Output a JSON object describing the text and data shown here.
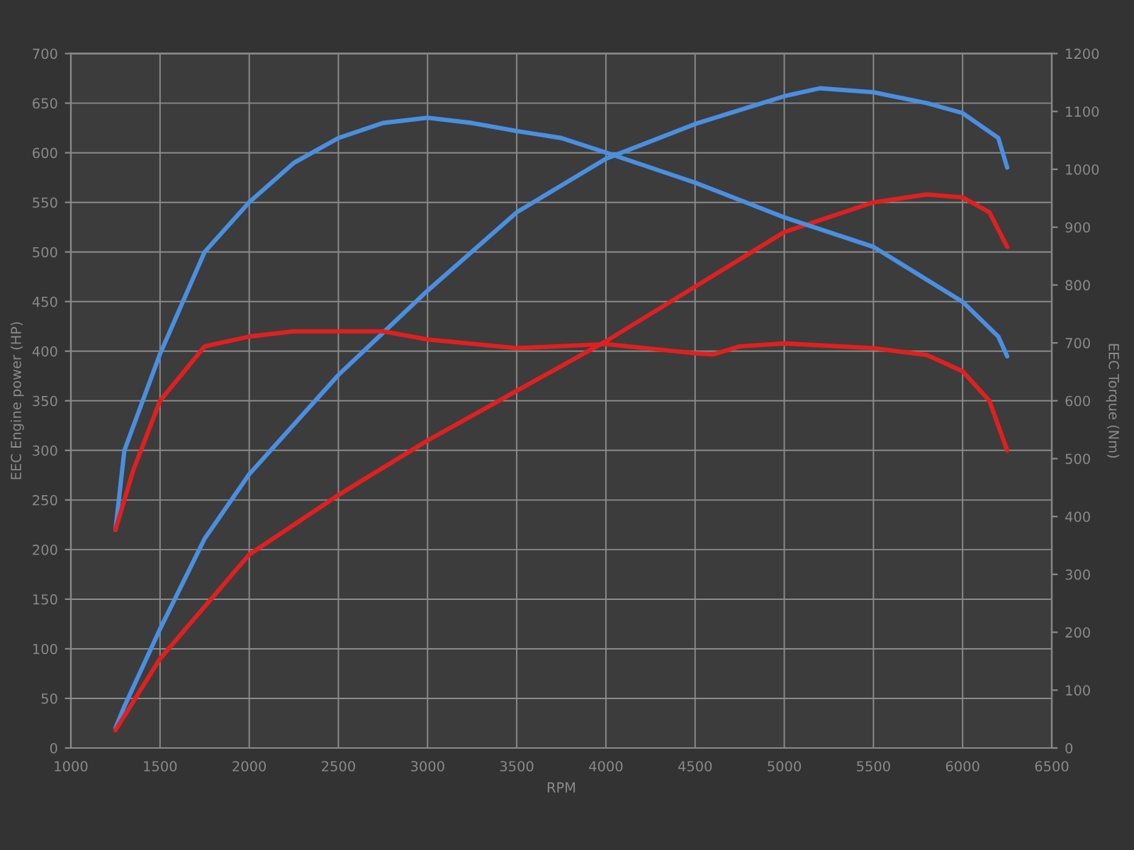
{
  "chart_data": {
    "type": "line",
    "xlabel": "RPM",
    "ylabel": "EEC Engine power (HP)",
    "y2label": "EEC Torque (Nm)",
    "xlim": [
      1000,
      6500
    ],
    "xticks": [
      1000,
      1500,
      2000,
      2500,
      3000,
      3500,
      4000,
      4500,
      5000,
      5500,
      6000,
      6500
    ],
    "ylim": [
      0,
      700
    ],
    "yticks": [
      0,
      50,
      100,
      150,
      200,
      250,
      300,
      350,
      400,
      450,
      500,
      550,
      600,
      650,
      700
    ],
    "y2lim": [
      0,
      1200
    ],
    "y2ticks": [
      0,
      100,
      200,
      300,
      400,
      500,
      600,
      700,
      800,
      900,
      1000,
      1100,
      1200
    ],
    "grid": true,
    "line_style": "solid",
    "series": [
      {
        "color": "#4a8fe0",
        "x": [
          1250,
          1300,
          1500,
          1750,
          2000,
          2500,
          3000,
          3500,
          4000,
          4500,
          5000,
          5200,
          5500,
          5800,
          6000,
          6200,
          6250
        ],
        "values": [
          20,
          42,
          120,
          211,
          276,
          376,
          461,
          540,
          594,
          629,
          657,
          665,
          661,
          650,
          640,
          615,
          585
        ]
      },
      {
        "color": "#e02020",
        "x": [
          1250,
          1500,
          2000,
          2500,
          3000,
          3500,
          4000,
          4500,
          5000,
          5500,
          5800,
          6000,
          6150,
          6250
        ],
        "values": [
          18,
          90,
          195,
          255,
          310,
          360,
          410,
          465,
          520,
          550,
          558,
          555,
          540,
          505
        ]
      },
      {
        "color": "#4a8fe0",
        "axis": "y2",
        "x": [
          1250,
          1300,
          1500,
          1750,
          2000,
          2250,
          2500,
          2750,
          3000,
          3250,
          3500,
          3750,
          4000,
          4500,
          5000,
          5500,
          6000,
          6200,
          6250
        ],
        "values": [
          377,
          514,
          681,
          857,
          943,
          1011,
          1054,
          1080,
          1089,
          1080,
          1066,
          1054,
          1029,
          977,
          917,
          866,
          771,
          711,
          677
        ]
      },
      {
        "color": "#e02020",
        "axis": "y2",
        "x": [
          1250,
          1350,
          1500,
          1750,
          2000,
          2250,
          2750,
          3000,
          3500,
          4000,
          4500,
          4600,
          4750,
          5000,
          5500,
          5800,
          6000,
          6150,
          6250
        ],
        "values": [
          377,
          480,
          600,
          694,
          711,
          720,
          720,
          706,
          691,
          698,
          682,
          680,
          694,
          699,
          691,
          679,
          651,
          600,
          514
        ]
      }
    ]
  }
}
